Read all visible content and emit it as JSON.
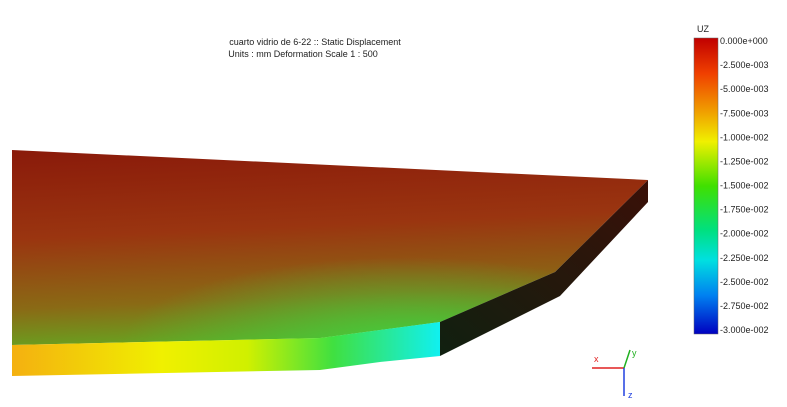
{
  "header": {
    "title": "cuarto vidrio de 6-22 :: Static Displacement",
    "subtitle": "Units : mm   Deformation Scale  1 : 500"
  },
  "legend": {
    "title": "UZ",
    "labels": [
      "0.000e+000",
      "-2.500e-003",
      "-5.000e-003",
      "-7.500e-003",
      "-1.000e-002",
      "-1.250e-002",
      "-1.500e-002",
      "-1.750e-002",
      "-2.000e-002",
      "-2.250e-002",
      "-2.500e-002",
      "-2.750e-002",
      "-3.000e-002"
    ]
  },
  "triad": {
    "x": "x",
    "y": "y",
    "z": "z"
  }
}
